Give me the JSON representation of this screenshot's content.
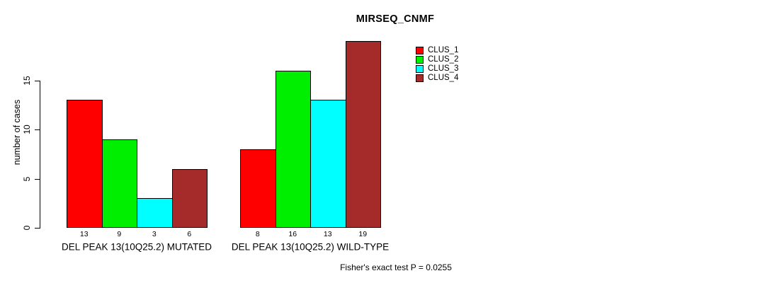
{
  "title": "MIRSEQ_CNMF",
  "chart_data": {
    "type": "bar",
    "title": "MIRSEQ_CNMF",
    "xlabel": "",
    "ylabel": "number of cases",
    "ylim": [
      0,
      19
    ],
    "yticks": [
      0,
      5,
      10,
      15
    ],
    "grid": false,
    "legend_position": "top-right",
    "categories": [
      "DEL PEAK 13(10Q25.2) MUTATED",
      "DEL PEAK 13(10Q25.2) WILD-TYPE"
    ],
    "series": [
      {
        "name": "CLUS_1",
        "color": "#FF0000",
        "values": [
          13,
          8
        ]
      },
      {
        "name": "CLUS_2",
        "color": "#00EE00",
        "values": [
          9,
          16
        ]
      },
      {
        "name": "CLUS_3",
        "color": "#00FFFF",
        "values": [
          3,
          13
        ]
      },
      {
        "name": "CLUS_4",
        "color": "#A52A2A",
        "values": [
          6,
          19
        ]
      }
    ],
    "bar_value_labels": [
      [
        13,
        9,
        3,
        6
      ],
      [
        8,
        16,
        13,
        19
      ]
    ],
    "annotation": "Fisher's exact test P = 0.0255"
  }
}
